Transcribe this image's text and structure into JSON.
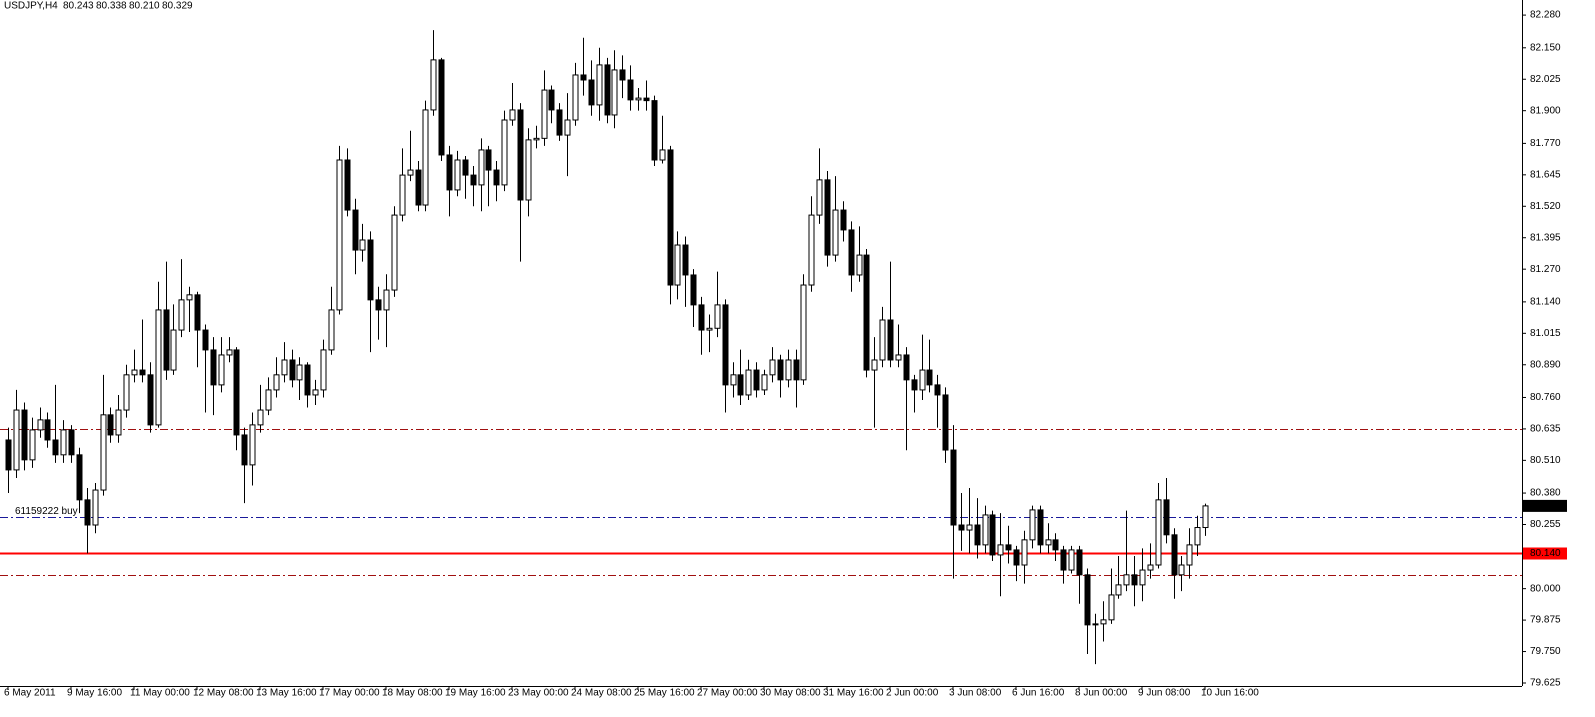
{
  "chart_data": {
    "type": "candlestick",
    "title": "USDJPY,H4",
    "header_ohlc": [
      "80.243",
      "80.338",
      "80.210",
      "80.329"
    ],
    "categories": [
      "6 May 2011",
      null,
      null,
      null,
      null,
      null,
      null,
      null,
      "9 May 16:00",
      null,
      null,
      null,
      null,
      null,
      null,
      null,
      "11 May 00:00",
      null,
      null,
      null,
      null,
      null,
      null,
      null,
      "12 May 08:00",
      null,
      null,
      null,
      null,
      null,
      null,
      null,
      "13 May 16:00",
      null,
      null,
      null,
      null,
      null,
      null,
      null,
      "17 May 00:00",
      null,
      null,
      null,
      null,
      null,
      null,
      null,
      "18 May 08:00",
      null,
      null,
      null,
      null,
      null,
      null,
      null,
      "19 May 16:00",
      null,
      null,
      null,
      null,
      null,
      null,
      null,
      "23 May 00:00",
      null,
      null,
      null,
      null,
      null,
      null,
      null,
      "24 May 08:00",
      null,
      null,
      null,
      null,
      null,
      null,
      null,
      "25 May 16:00",
      null,
      null,
      null,
      null,
      null,
      null,
      null,
      "27 May 00:00",
      null,
      null,
      null,
      null,
      null,
      null,
      null,
      "30 May 08:00",
      null,
      null,
      null,
      null,
      null,
      null,
      null,
      "31 May 16:00",
      null,
      null,
      null,
      null,
      null,
      null,
      null,
      "2 Jun 00:00",
      null,
      null,
      null,
      null,
      null,
      null,
      null,
      "3 Jun 08:00",
      null,
      null,
      null,
      null,
      null,
      null,
      null,
      "6 Jun 16:00",
      null,
      null,
      null,
      null,
      null,
      null,
      null,
      "8 Jun 00:00",
      null,
      null,
      null,
      null,
      null,
      null,
      null,
      "9 Jun 08:00",
      null,
      null,
      null,
      null,
      null,
      null,
      null,
      "10 Jun 16:00"
    ],
    "open": [
      80.591,
      80.472,
      80.71,
      80.512,
      80.631,
      80.671,
      80.591,
      80.532,
      80.631,
      80.532,
      80.353,
      80.253,
      80.392,
      80.691,
      80.611,
      80.71,
      80.85,
      80.869,
      80.85,
      80.651,
      81.108,
      80.869,
      81.028,
      81.148,
      81.168,
      81.028,
      80.949,
      80.81,
      80.929,
      80.949,
      80.611,
      80.492,
      80.651,
      80.71,
      80.79,
      80.85,
      80.909,
      80.83,
      80.889,
      80.77,
      80.79,
      80.949,
      81.108,
      81.704,
      81.505,
      81.346,
      81.386,
      81.148,
      81.108,
      81.187,
      81.485,
      81.644,
      81.664,
      81.525,
      81.903,
      82.102,
      81.724,
      81.585,
      81.704,
      81.644,
      81.605,
      81.744,
      81.664,
      81.605,
      81.863,
      81.903,
      81.545,
      81.784,
      81.79,
      81.982,
      81.903,
      81.803,
      81.863,
      82.042,
      82.022,
      81.923,
      82.082,
      81.883,
      82.062,
      82.022,
      81.943,
      81.95,
      81.94,
      81.704,
      81.744,
      81.207,
      81.366,
      81.247,
      81.128,
      81.028,
      81.035,
      81.128,
      80.81,
      80.85,
      80.77,
      80.869,
      80.79,
      80.85,
      80.909,
      80.83,
      80.909,
      80.83,
      81.207,
      81.485,
      81.625,
      81.326,
      81.505,
      81.426,
      81.247,
      81.326,
      80.869,
      80.909,
      81.068,
      80.909,
      80.929,
      80.83,
      80.79,
      80.869,
      80.81,
      80.77,
      80.551,
      80.253,
      80.233,
      80.253,
      80.174,
      80.293,
      80.134,
      80.174,
      80.154,
      80.094,
      80.194,
      80.313,
      80.174,
      80.194,
      80.154,
      80.074,
      80.154,
      80.055,
      79.856,
      79.86,
      79.876,
      79.975,
      80.015,
      80.055,
      80.015,
      80.074,
      80.094,
      80.353,
      80.214,
      80.055,
      80.094,
      80.174,
      80.243
    ],
    "high": [
      80.64,
      80.79,
      80.74,
      80.68,
      80.72,
      80.7,
      80.81,
      80.67,
      80.65,
      80.56,
      80.4,
      80.42,
      80.85,
      80.72,
      80.77,
      80.89,
      80.95,
      81.07,
      80.9,
      81.22,
      81.3,
      81.13,
      81.31,
      81.2,
      81.18,
      81.05,
      81.0,
      81.0,
      81.0,
      80.96,
      80.64,
      80.7,
      80.81,
      80.84,
      80.92,
      80.98,
      80.95,
      80.92,
      80.9,
      80.83,
      80.99,
      81.2,
      81.76,
      81.75,
      81.55,
      81.45,
      81.42,
      81.2,
      81.25,
      81.52,
      81.75,
      81.82,
      81.7,
      81.94,
      82.22,
      82.11,
      81.76,
      81.74,
      81.72,
      81.68,
      81.79,
      81.76,
      81.7,
      81.9,
      82.01,
      81.93,
      81.83,
      81.84,
      82.06,
      82.0,
      81.93,
      81.97,
      82.09,
      82.19,
      82.1,
      82.15,
      82.11,
      82.14,
      82.12,
      82.08,
      81.99,
      82.02,
      81.96,
      81.88,
      81.76,
      81.42,
      81.4,
      81.27,
      81.16,
      81.09,
      81.26,
      81.15,
      80.9,
      80.95,
      80.91,
      80.9,
      80.87,
      80.96,
      80.93,
      80.95,
      80.95,
      81.25,
      81.56,
      81.75,
      81.66,
      81.64,
      81.54,
      81.46,
      81.44,
      81.35,
      81.0,
      81.12,
      81.3,
      81.05,
      80.96,
      80.85,
      81.01,
      80.99,
      80.85,
      80.8,
      80.65,
      80.38,
      80.4,
      80.36,
      80.33,
      80.31,
      80.3,
      80.25,
      80.17,
      80.23,
      80.33,
      80.33,
      80.26,
      80.22,
      80.17,
      80.17,
      80.17,
      80.08,
      79.9,
      79.95,
      80.08,
      80.13,
      80.31,
      80.13,
      80.16,
      80.18,
      80.42,
      80.44,
      80.24,
      80.13,
      80.24,
      80.29,
      80.338
    ],
    "low": [
      80.38,
      80.44,
      80.47,
      80.48,
      80.6,
      80.56,
      80.5,
      80.5,
      80.5,
      80.3,
      80.14,
      80.22,
      80.37,
      80.58,
      80.58,
      80.68,
      80.82,
      80.82,
      80.62,
      80.64,
      80.83,
      80.85,
      81.0,
      81.02,
      80.88,
      80.7,
      80.69,
      80.78,
      80.9,
      80.55,
      80.34,
      80.41,
      80.62,
      80.69,
      80.76,
      80.82,
      80.8,
      80.75,
      80.72,
      80.73,
      80.76,
      80.93,
      81.09,
      81.48,
      81.25,
      81.3,
      80.94,
      80.99,
      80.96,
      81.16,
      81.46,
      81.62,
      81.5,
      81.5,
      81.88,
      81.7,
      81.48,
      81.56,
      81.55,
      81.52,
      81.5,
      81.52,
      81.54,
      81.58,
      81.84,
      81.3,
      81.48,
      81.75,
      81.76,
      81.85,
      81.78,
      81.64,
      81.84,
      81.96,
      81.88,
      81.86,
      81.85,
      81.83,
      81.95,
      81.9,
      81.9,
      81.9,
      81.68,
      81.69,
      81.13,
      81.15,
      81.12,
      81.04,
      80.93,
      80.94,
      81.0,
      80.7,
      80.76,
      80.73,
      80.75,
      80.76,
      80.77,
      80.82,
      80.76,
      80.8,
      80.72,
      80.81,
      81.18,
      81.45,
      81.28,
      81.3,
      81.38,
      81.18,
      81.22,
      80.84,
      80.64,
      80.88,
      80.88,
      80.88,
      80.55,
      80.7,
      80.75,
      80.78,
      80.64,
      80.5,
      80.04,
      80.15,
      80.14,
      80.12,
      80.14,
      80.11,
      79.97,
      80.1,
      80.03,
      80.02,
      80.16,
      80.14,
      80.14,
      80.11,
      80.02,
      80.06,
      79.94,
      79.74,
      79.7,
      79.79,
      79.86,
      79.96,
      79.99,
      79.93,
      79.95,
      80.04,
      80.08,
      80.18,
      79.96,
      79.99,
      80.04,
      80.13,
      80.21
    ],
    "close": [
      80.472,
      80.71,
      80.512,
      80.631,
      80.671,
      80.591,
      80.532,
      80.631,
      80.532,
      80.353,
      80.253,
      80.392,
      80.691,
      80.611,
      80.71,
      80.85,
      80.869,
      80.85,
      80.651,
      81.108,
      80.869,
      81.028,
      81.148,
      81.168,
      81.028,
      80.949,
      80.81,
      80.929,
      80.949,
      80.611,
      80.492,
      80.651,
      80.71,
      80.79,
      80.85,
      80.909,
      80.83,
      80.889,
      80.77,
      80.79,
      80.949,
      81.108,
      81.704,
      81.505,
      81.346,
      81.386,
      81.148,
      81.108,
      81.187,
      81.485,
      81.644,
      81.664,
      81.525,
      81.903,
      82.102,
      81.724,
      81.585,
      81.704,
      81.644,
      81.605,
      81.744,
      81.664,
      81.605,
      81.863,
      81.903,
      81.545,
      81.784,
      81.79,
      81.982,
      81.903,
      81.803,
      81.863,
      82.042,
      82.022,
      81.923,
      82.082,
      81.883,
      82.062,
      82.022,
      81.943,
      81.95,
      81.94,
      81.704,
      81.744,
      81.207,
      81.366,
      81.247,
      81.128,
      81.028,
      81.035,
      81.128,
      80.81,
      80.85,
      80.77,
      80.869,
      80.79,
      80.85,
      80.909,
      80.83,
      80.909,
      80.83,
      81.207,
      81.485,
      81.625,
      81.326,
      81.505,
      81.426,
      81.247,
      81.326,
      80.869,
      80.909,
      81.068,
      80.909,
      80.929,
      80.83,
      80.79,
      80.869,
      80.81,
      80.77,
      80.551,
      80.253,
      80.233,
      80.253,
      80.174,
      80.293,
      80.134,
      80.174,
      80.154,
      80.094,
      80.194,
      80.313,
      80.174,
      80.194,
      80.154,
      80.074,
      80.154,
      80.055,
      79.856,
      79.86,
      79.876,
      79.975,
      80.015,
      80.055,
      80.015,
      80.074,
      80.094,
      80.353,
      80.214,
      80.055,
      80.094,
      80.174,
      80.243,
      80.329
    ],
    "up_color": "#ffffff",
    "down_color": "#000000",
    "ylim": [
      79.617,
      82.34
    ],
    "yticks": [
      {
        "value": 82.28,
        "label": "82.280"
      },
      {
        "value": 82.15,
        "label": "82.150"
      },
      82.025,
      {
        "value": 81.9,
        "label": "81.900"
      },
      {
        "value": 81.77,
        "label": "81.770"
      },
      81.645,
      {
        "value": 81.52,
        "label": "81.520"
      },
      81.395,
      {
        "value": 81.27,
        "label": "81.270"
      },
      {
        "value": 81.14,
        "label": "81.140"
      },
      81.015,
      {
        "value": 80.89,
        "label": "80.890"
      },
      {
        "value": 80.76,
        "label": "80.760"
      },
      80.635,
      {
        "value": 80.51,
        "label": "80.510"
      },
      {
        "value": 80.38,
        "label": "80.380"
      },
      80.255,
      {
        "value": 80.0,
        "label": "80.000"
      },
      79.875,
      {
        "value": 79.75,
        "label": "79.750"
      },
      79.625
    ],
    "levels": [
      {
        "value": 80.635,
        "color": "#a01010",
        "style": "dashdot"
      },
      {
        "value": 80.283,
        "color": "#1a1a9a",
        "style": "dashdot",
        "label": "61159222 buy"
      },
      {
        "value": 80.14,
        "color": "#ff0000",
        "style": "solid",
        "value_label": "80.140"
      },
      {
        "value": 80.055,
        "color": "#a01010",
        "style": "dashdot"
      }
    ]
  }
}
